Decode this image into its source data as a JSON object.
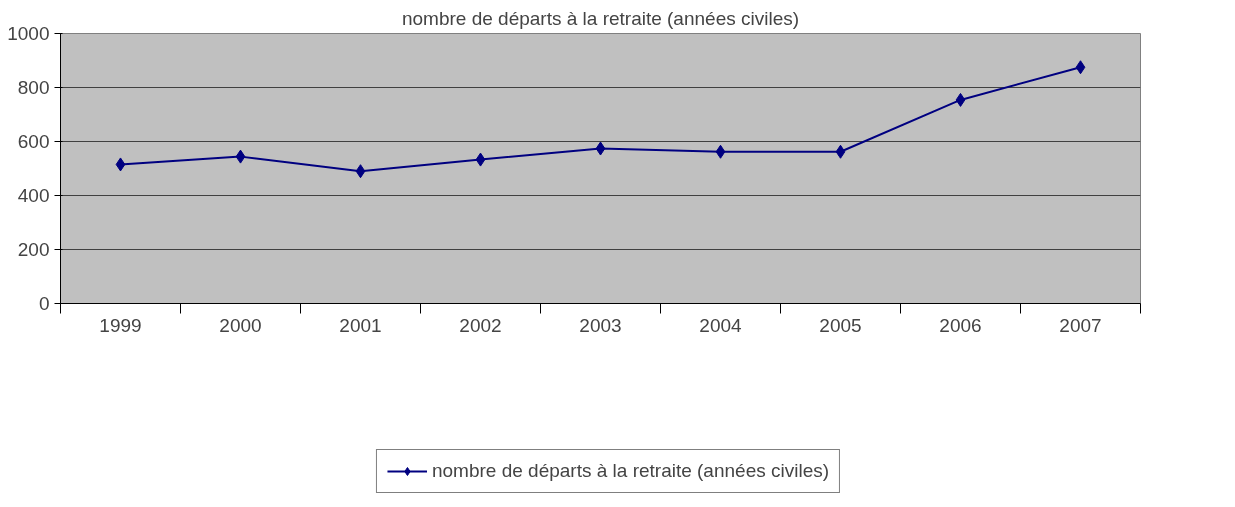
{
  "chart_data": {
    "type": "line",
    "title": "nombre de départs à la retraite (années civiles)",
    "categories": [
      "1999",
      "2000",
      "2001",
      "2002",
      "2003",
      "2004",
      "2005",
      "2006",
      "2007"
    ],
    "series": [
      {
        "name": "nombre de départs à la retraite (années civiles)",
        "color": "#000080",
        "values": [
          515,
          544,
          490,
          533,
          574,
          562,
          562,
          754,
          875
        ]
      }
    ],
    "ylim": [
      0,
      1000
    ],
    "yticks": [
      0,
      200,
      400,
      600,
      800,
      1000
    ],
    "grid": "y",
    "legend": "bottom",
    "marker": "diamond",
    "line_style": "solid"
  }
}
